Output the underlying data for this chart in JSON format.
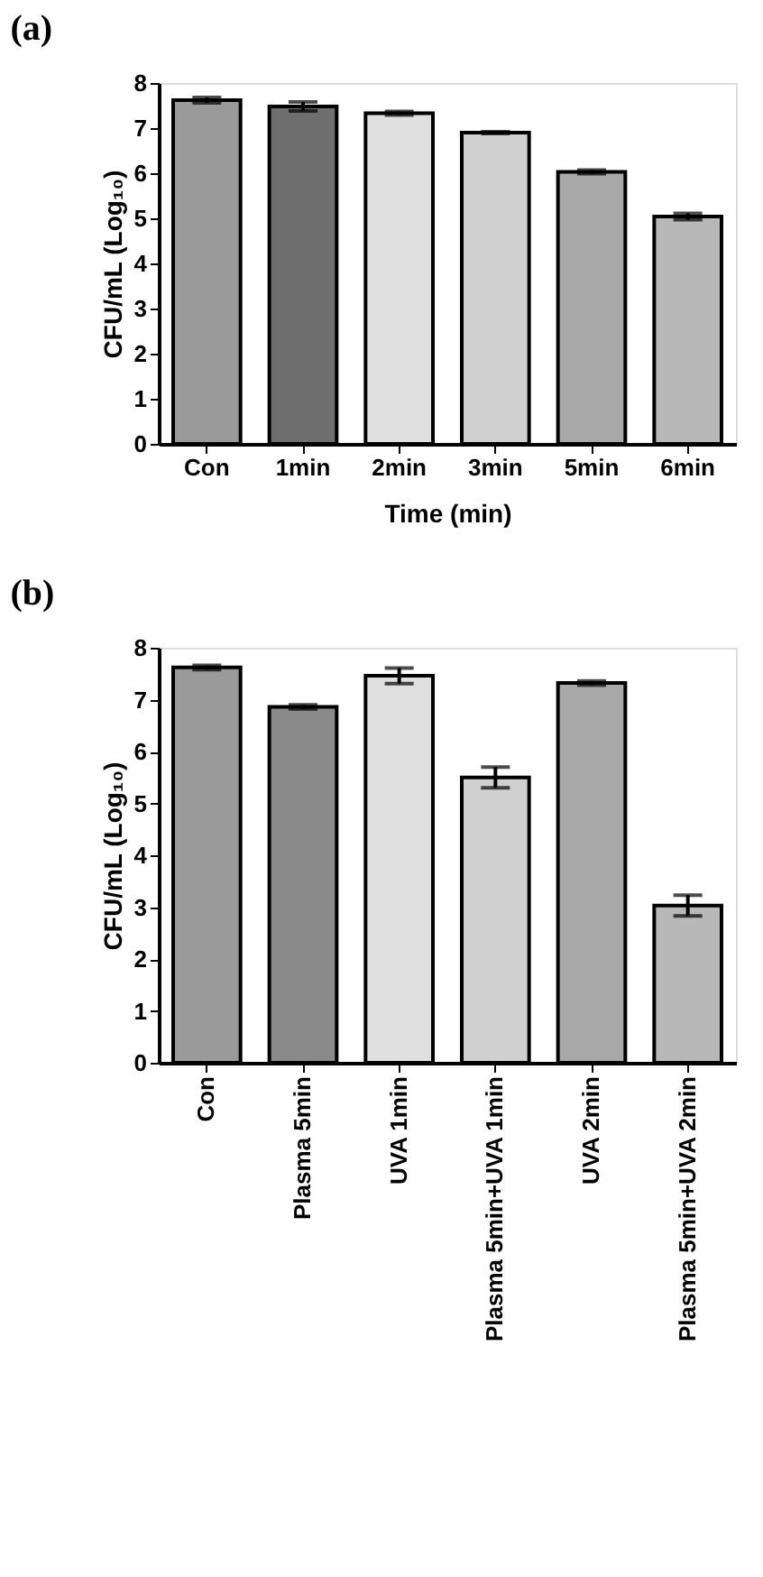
{
  "chart_data": [
    {
      "type": "bar",
      "title": "(a)",
      "xlabel": "Time (min)",
      "ylabel": "CFU/mL (Log₁₀)",
      "categories": [
        "Con",
        "1min",
        "2min",
        "3min",
        "5min",
        "6min"
      ],
      "values": [
        7.62,
        7.48,
        7.33,
        6.9,
        6.03,
        5.04
      ],
      "errors": [
        0.06,
        0.1,
        0.04,
        0.02,
        0.04,
        0.07
      ],
      "colors": [
        "#9a9a9a",
        "#6e6e6e",
        "#e0e0e0",
        "#d0d0d0",
        "#a8a8a8",
        "#b8b8b8"
      ],
      "ylim": [
        0,
        8
      ],
      "yticks": [
        0,
        1,
        2,
        3,
        4,
        5,
        6,
        7,
        8
      ],
      "grid": false
    },
    {
      "type": "bar",
      "title": "(b)",
      "ylabel": "CFU/mL (Log₁₀)",
      "categories": [
        "Con",
        "Plasma 5min",
        "UVA 1min",
        "Plasma 5min+UVA 1min",
        "UVA 2min",
        "Plasma 5min+UVA 2min"
      ],
      "values": [
        7.62,
        6.86,
        7.46,
        5.5,
        7.32,
        3.03
      ],
      "errors": [
        0.04,
        0.04,
        0.15,
        0.2,
        0.04,
        0.2
      ],
      "colors": [
        "#9a9a9a",
        "#8a8a8a",
        "#e0e0e0",
        "#d0d0d0",
        "#a8a8a8",
        "#b8b8b8"
      ],
      "ylim": [
        0,
        8
      ],
      "yticks": [
        0,
        1,
        2,
        3,
        4,
        5,
        6,
        7,
        8
      ],
      "grid": false
    }
  ]
}
